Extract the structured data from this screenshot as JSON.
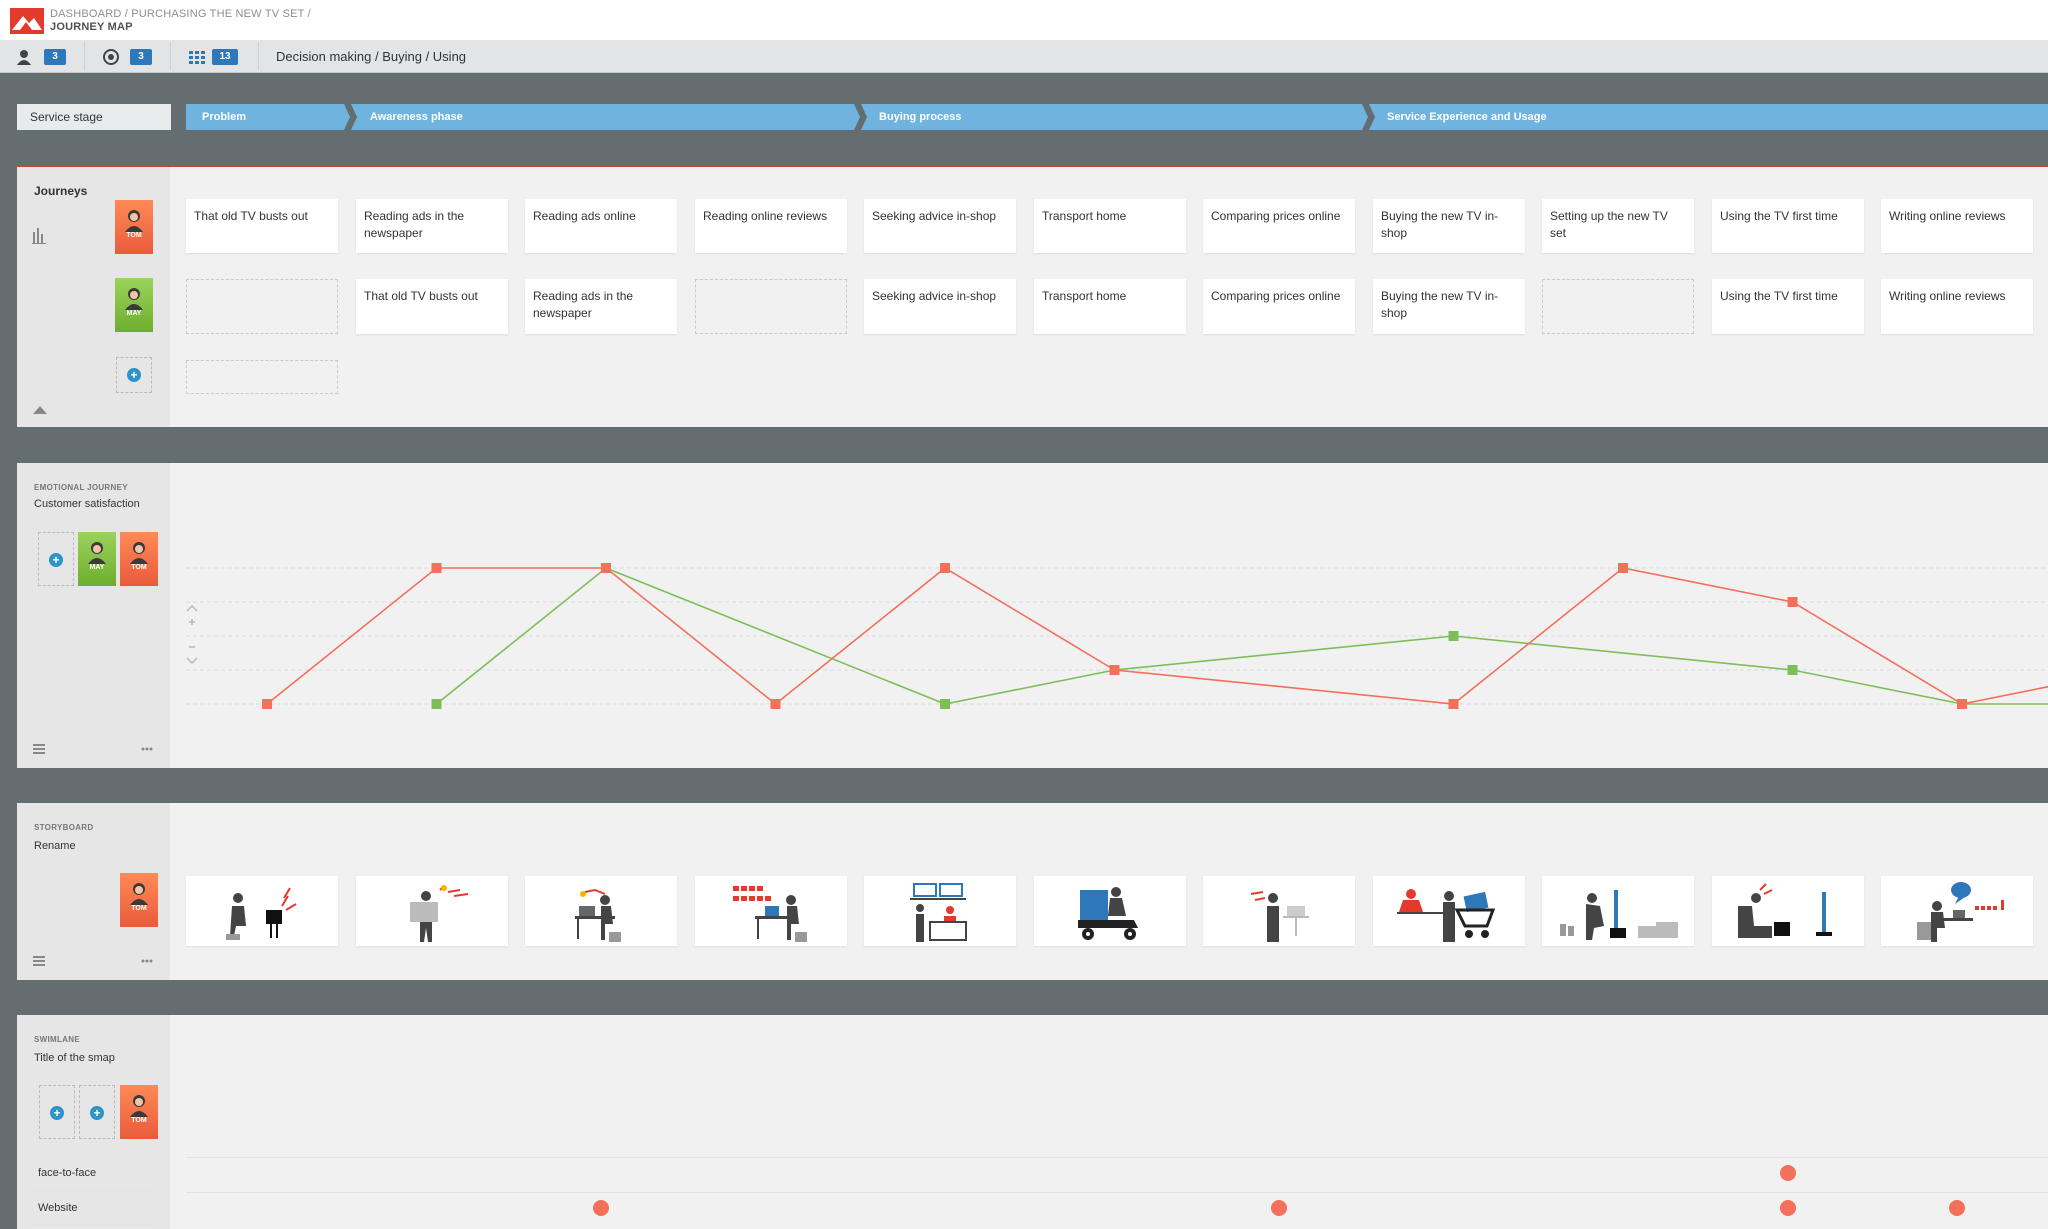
{
  "header": {
    "crumb": "DASHBOARD / PURCHASING THE NEW TV SET /",
    "title": "JOURNEY MAP"
  },
  "toolbar": {
    "personas_icon": "user-icon",
    "personas_count": "3",
    "goals_icon": "target-icon",
    "goals_count": "3",
    "grid_icon": "grid-icon",
    "grid_count": "13",
    "path": "Decision making / Buying / Using"
  },
  "stages": {
    "label": "Service stage",
    "items": [
      "Problem",
      "Awareness phase",
      "Buying process",
      "Service Experience and Usage"
    ],
    "color": "#6fb3de"
  },
  "journeys": {
    "title": "Journeys",
    "tom_row": [
      "That old TV busts out",
      "Reading ads in the newspaper",
      "Reading ads online",
      "Reading online reviews",
      "Seeking advice in-shop",
      "Transport  home",
      "Comparing prices online",
      "Buying the new TV in-shop",
      "Setting up the new TV set",
      "Using the TV first time",
      "Writing online reviews"
    ],
    "may_row": [
      "",
      "That old TV busts out",
      "Reading ads in the newspaper",
      "",
      "Seeking advice in-shop",
      "Transport  home",
      "Comparing prices online",
      "Buying the new TV in-shop",
      "",
      "Using the TV first time",
      "Writing online reviews"
    ]
  },
  "personas": {
    "tom": "TOM",
    "may": "MAY",
    "tom_color": "#f26b43",
    "may_color": "#7dbf3f"
  },
  "emotional": {
    "small": "EMOTIONAL JOURNEY",
    "title": "Customer satisfaction"
  },
  "chart_data": {
    "type": "line",
    "x": [
      1,
      2,
      3,
      4,
      5,
      6,
      7,
      8,
      9,
      10,
      11,
      12
    ],
    "ylim": [
      1,
      5
    ],
    "series": [
      {
        "color": "#f3705a",
        "x": [
          1,
          2,
          3,
          4,
          5,
          6,
          8,
          9,
          10,
          11,
          12
        ],
        "values": [
          1,
          5,
          5,
          1,
          5,
          2,
          1,
          5,
          4,
          1,
          2
        ]
      },
      {
        "color": "#7dbf56",
        "x": [
          2,
          3,
          5,
          6,
          8,
          10,
          11,
          12
        ],
        "values": [
          1,
          5,
          1,
          2,
          3,
          2,
          1,
          1
        ]
      }
    ]
  },
  "storyboard": {
    "small": "STORYBOARD",
    "title": "Rename"
  },
  "swimlane": {
    "small": "SWIMLANE",
    "title": "Title of the smap",
    "lanes": [
      "face-to-face",
      "Website"
    ],
    "dot_color": "#f3705a",
    "face_to_face_columns": [
      10
    ],
    "website_columns": [
      3,
      7,
      10,
      11
    ]
  }
}
